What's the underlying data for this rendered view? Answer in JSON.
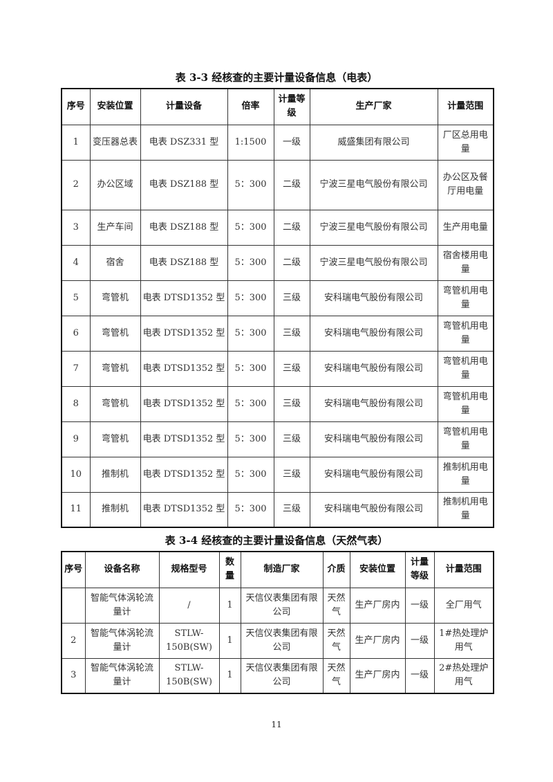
{
  "table1": {
    "caption": "表 3-3  经核查的主要计量设备信息（电表）",
    "headers": [
      "序号",
      "安装位置",
      "计量设备",
      "倍率",
      "计量等级",
      "生产厂家",
      "计量范围"
    ],
    "rows": [
      [
        "1",
        "变压器总表",
        "电表 DSZ331 型",
        "1:1500",
        "一级",
        "威盛集团有限公司",
        "厂区总用电量"
      ],
      [
        "2",
        "办公区域",
        "电表 DSZ188 型",
        "5：300",
        "二级",
        "宁波三星电气股份有限公司",
        "办公区及餐厅用电量"
      ],
      [
        "3",
        "生产车间",
        "电表 DSZ188 型",
        "5：300",
        "二级",
        "宁波三星电气股份有限公司",
        "生产用电量"
      ],
      [
        "4",
        "宿舍",
        "电表 DSZ188 型",
        "5：300",
        "二级",
        "宁波三星电气股份有限公司",
        "宿舍楼用电量"
      ],
      [
        "5",
        "弯管机",
        "电表 DTSD1352 型",
        "5：300",
        "三级",
        "安科瑞电气股份有限公司",
        "弯管机用电量"
      ],
      [
        "6",
        "弯管机",
        "电表 DTSD1352 型",
        "5：300",
        "三级",
        "安科瑞电气股份有限公司",
        "弯管机用电量"
      ],
      [
        "7",
        "弯管机",
        "电表 DTSD1352 型",
        "5：300",
        "三级",
        "安科瑞电气股份有限公司",
        "弯管机用电量"
      ],
      [
        "8",
        "弯管机",
        "电表 DTSD1352 型",
        "5：300",
        "三级",
        "安科瑞电气股份有限公司",
        "弯管机用电量"
      ],
      [
        "9",
        "弯管机",
        "电表 DTSD1352 型",
        "5：300",
        "三级",
        "安科瑞电气股份有限公司",
        "弯管机用电量"
      ],
      [
        "10",
        "推制机",
        "电表 DTSD1352 型",
        "5：300",
        "三级",
        "安科瑞电气股份有限公司",
        "推制机用电量"
      ],
      [
        "11",
        "推制机",
        "电表 DTSD1352 型",
        "5：300",
        "三级",
        "安科瑞电气股份有限公司",
        "推制机用电量"
      ]
    ]
  },
  "table2": {
    "caption": "表 3-4  经核查的主要计量设备信息（天然气表）",
    "headers": [
      "序号",
      "设备名称",
      "规格型号",
      "数量",
      "制造厂家",
      "介质",
      "安装位置",
      "计量等级",
      "计量范围"
    ],
    "rows": [
      [
        "",
        "智能气体涡轮流量计",
        "/",
        "1",
        "天信仪表集团有限公司",
        "天然气",
        "生产厂房内",
        "一级",
        "全厂用气"
      ],
      [
        "2",
        "智能气体涡轮流量计",
        "STLW-150B(SW)",
        "1",
        "天信仪表集团有限公司",
        "天然气",
        "生产厂房内",
        "一级",
        "1#热处理炉用气"
      ],
      [
        "3",
        "智能气体涡轮流量计",
        "STLW-150B(SW)",
        "1",
        "天信仪表集团有限公司",
        "天然气",
        "生产厂房内",
        "一级",
        "2#热处理炉用气"
      ]
    ]
  },
  "page_number": "11"
}
